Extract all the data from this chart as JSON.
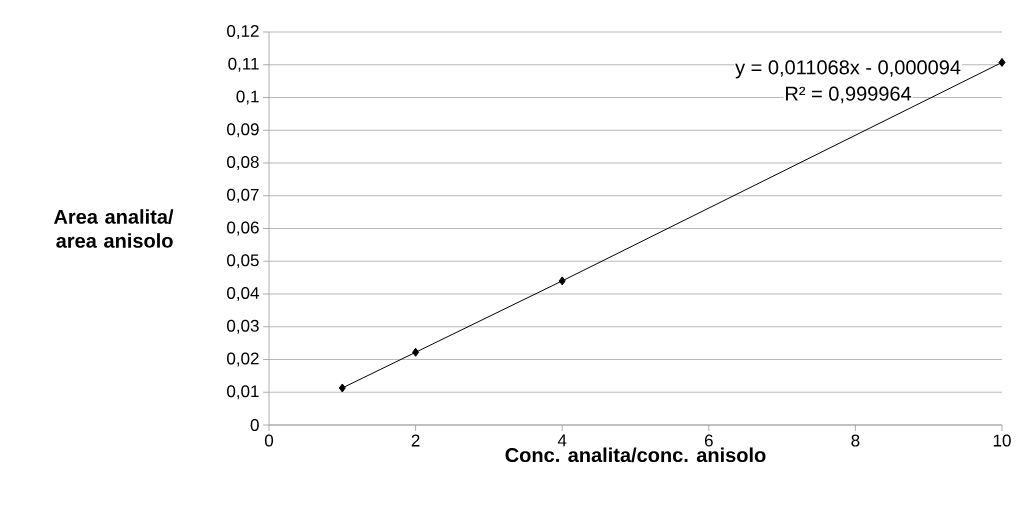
{
  "chart_data": {
    "type": "line",
    "xlabel": "Conc. analita/conc. anisolo",
    "ylabel": "Area analita/ area anisolo",
    "x": [
      1,
      2,
      4,
      10
    ],
    "values": [
      0.0113,
      0.0222,
      0.044,
      0.1107
    ],
    "color": "#000000",
    "marker": "diamond",
    "line_style": "solid",
    "xlim": [
      0,
      10
    ],
    "xticks": [
      0,
      2,
      4,
      6,
      8,
      10
    ],
    "ylim": [
      0,
      0.12
    ],
    "yticks": [
      {
        "value": 0,
        "label": "0"
      },
      {
        "value": 0.01,
        "label": "0,01"
      },
      {
        "value": 0.02,
        "label": "0,02"
      },
      {
        "value": 0.03,
        "label": "0,03"
      },
      {
        "value": 0.04,
        "label": "0,04"
      },
      {
        "value": 0.05,
        "label": "0,05"
      },
      {
        "value": 0.06,
        "label": "0,06"
      },
      {
        "value": 0.07,
        "label": "0,07"
      },
      {
        "value": 0.08,
        "label": "0,08"
      },
      {
        "value": 0.09,
        "label": "0,09"
      },
      {
        "value": 0.1,
        "label": "0,1"
      },
      {
        "value": 0.11,
        "label": "0,11"
      },
      {
        "value": 0.12,
        "label": "0,12"
      }
    ],
    "grid": "y",
    "annotations": [
      "y = 0,011068x - 0,000094",
      "R² = 0,999964"
    ]
  }
}
